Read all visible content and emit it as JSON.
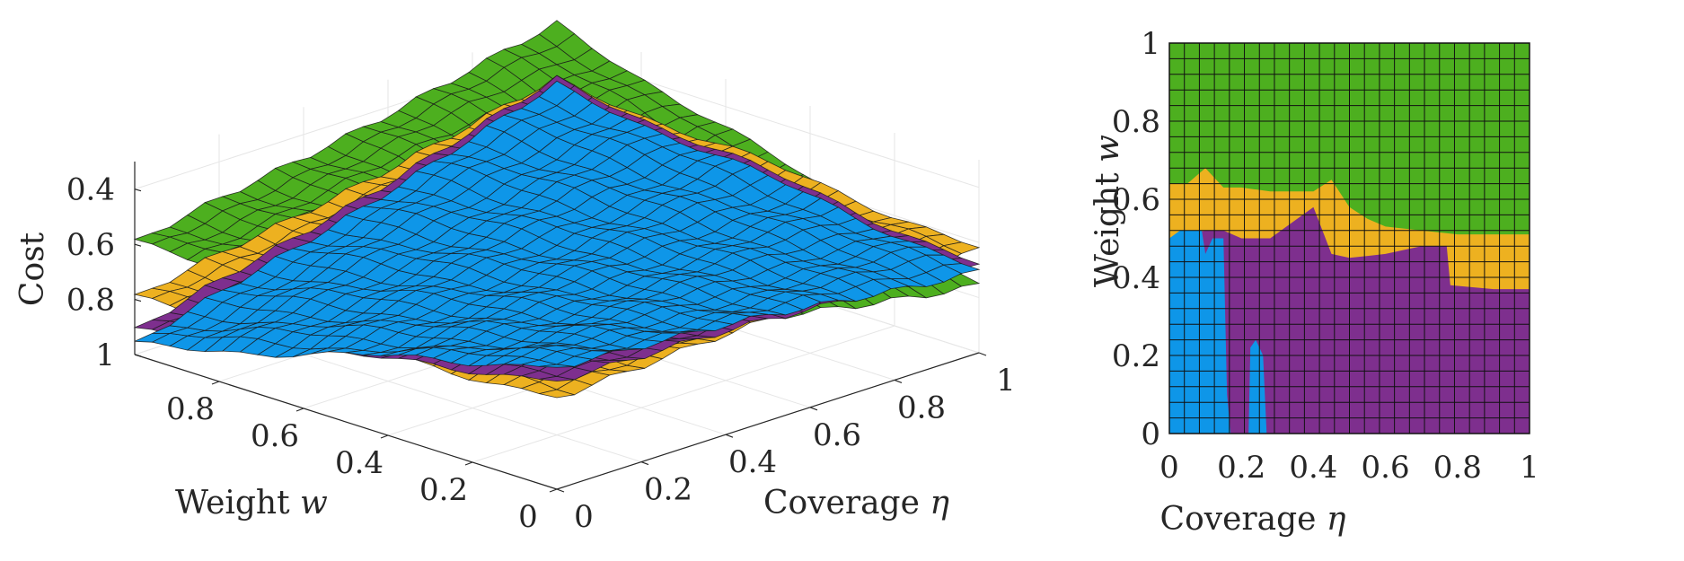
{
  "chart_data": [
    {
      "type": "surface",
      "view": "3d",
      "xlabel": "Coverage",
      "xlabel_symbol": "η",
      "ylabel": "Weight",
      "ylabel_symbol": "w",
      "zlabel": "Cost",
      "xlim": [
        0,
        1
      ],
      "ylim": [
        0,
        1
      ],
      "zlim": [
        0.3,
        1
      ],
      "z_direction": "reversed",
      "x_ticks": [
        "0",
        "0.2",
        "0.4",
        "0.6",
        "0.8",
        "1"
      ],
      "y_ticks": [
        "0",
        "0.2",
        "0.4",
        "0.6",
        "0.8"
      ],
      "z_ticks": [
        "0.4",
        "0.6",
        "0.8",
        "1"
      ],
      "grid": true,
      "series": [
        {
          "color": "#4daf1f",
          "cost_at_corners": {
            "eta0_w0": 0.52,
            "eta1_w0": 0.75,
            "eta0_w1": 0.6,
            "eta1_w1": 0.3
          }
        },
        {
          "color": "#edb120",
          "cost_at_corners": {
            "eta0_w0": 0.66,
            "eta1_w0": 0.62,
            "eta0_w1": 0.8,
            "eta1_w1": 0.5
          }
        },
        {
          "color": "#7e2f8e",
          "cost_at_corners": {
            "eta0_w0": 0.6,
            "eta1_w0": 0.68,
            "eta0_w1": 0.92,
            "eta1_w1": 0.5
          }
        },
        {
          "color": "#0e96e8",
          "cost_at_corners": {
            "eta0_w0": 0.55,
            "eta1_w0": 0.7,
            "eta0_w1": 0.97,
            "eta1_w1": 0.52
          }
        }
      ]
    },
    {
      "type": "heatmap",
      "view": "top",
      "xlabel": "Coverage",
      "xlabel_symbol": "η",
      "ylabel": "Weight",
      "ylabel_symbol": "w",
      "xlim": [
        0,
        1
      ],
      "ylim": [
        0,
        1
      ],
      "x_ticks": [
        "0",
        "0.2",
        "0.4",
        "0.6",
        "0.8",
        "1"
      ],
      "y_ticks": [
        "0",
        "0.2",
        "0.4",
        "0.6",
        "0.8",
        "1"
      ],
      "grid_cells": [
        24,
        25
      ],
      "regions": [
        {
          "color": "#4daf1f",
          "w_lower_boundary": [
            [
              0,
              0.64
            ],
            [
              0.05,
              0.64
            ],
            [
              0.1,
              0.68
            ],
            [
              0.15,
              0.63
            ],
            [
              0.2,
              0.63
            ],
            [
              0.28,
              0.62
            ],
            [
              0.4,
              0.62
            ],
            [
              0.45,
              0.65
            ],
            [
              0.5,
              0.58
            ],
            [
              0.55,
              0.55
            ],
            [
              0.6,
              0.53
            ],
            [
              0.7,
              0.52
            ],
            [
              0.8,
              0.51
            ],
            [
              0.9,
              0.51
            ],
            [
              1,
              0.51
            ]
          ]
        },
        {
          "color": "#edb120",
          "w_lower_boundary": [
            [
              0,
              0.5
            ],
            [
              0.1,
              0.52
            ],
            [
              0.15,
              0.52
            ],
            [
              0.2,
              0.5
            ],
            [
              0.28,
              0.5
            ],
            [
              0.4,
              0.58
            ],
            [
              0.45,
              0.46
            ],
            [
              0.5,
              0.45
            ],
            [
              0.6,
              0.46
            ],
            [
              0.7,
              0.48
            ],
            [
              0.77,
              0.48
            ],
            [
              0.78,
              0.38
            ],
            [
              0.9,
              0.37
            ],
            [
              1,
              0.37
            ]
          ]
        },
        {
          "color": "#7e2f8e",
          "eta_range": [
            0.12,
            1
          ]
        },
        {
          "color": "#0e96e8",
          "eta_range": [
            0,
            0.28
          ]
        }
      ]
    }
  ]
}
